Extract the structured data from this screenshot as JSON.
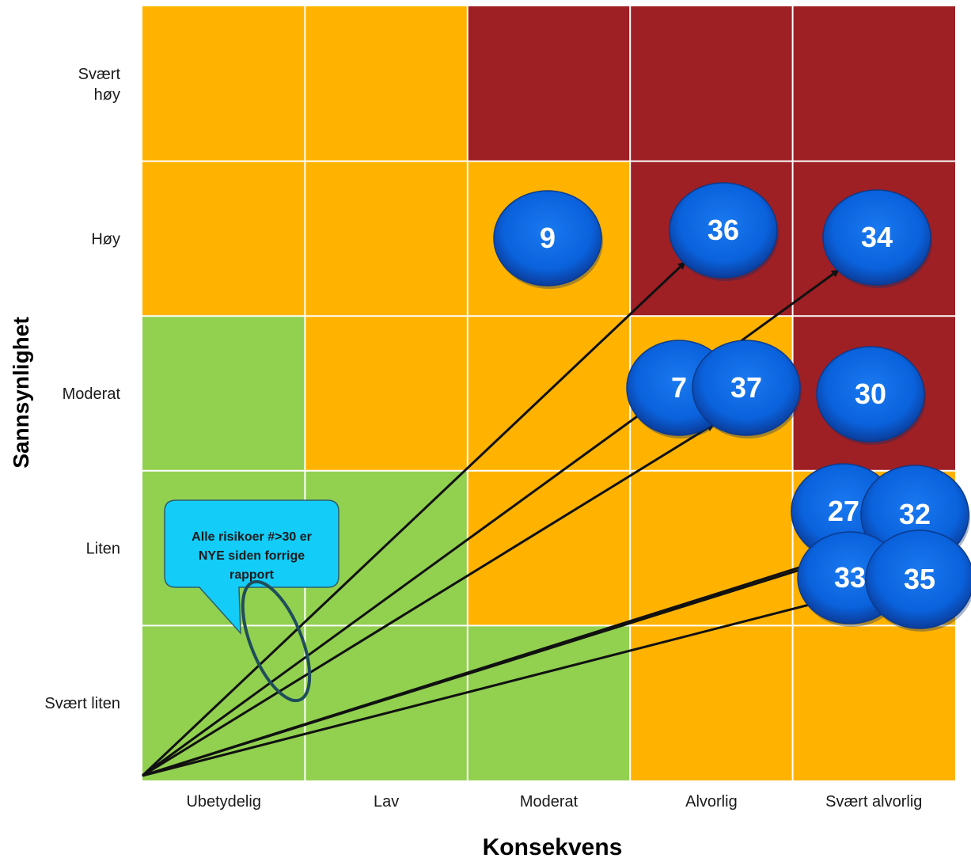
{
  "x_axis": {
    "title": "Konsekvens",
    "labels": [
      "Ubetydelig",
      "Lav",
      "Moderat",
      "Alvorlig",
      "Svært alvorlig"
    ]
  },
  "y_axis": {
    "title": "Sannsynlighet",
    "labels": [
      [
        "Svært",
        "høy"
      ],
      [
        "Høy"
      ],
      [
        "Moderat"
      ],
      [
        "Liten"
      ],
      [
        "Svært liten"
      ]
    ]
  },
  "colors": {
    "green": "#92d050",
    "orange": "#ffb300",
    "red": "#9e1f24",
    "bubble": "#0a66e0",
    "callout": "#13ccf7",
    "ellipse": "#1f4e5a"
  },
  "grid": [
    [
      "orange",
      "orange",
      "red",
      "red",
      "red"
    ],
    [
      "orange",
      "orange",
      "orange",
      "red",
      "red"
    ],
    [
      "green",
      "orange",
      "orange",
      "orange",
      "red"
    ],
    [
      "green",
      "green",
      "orange",
      "orange",
      "orange"
    ],
    [
      "green",
      "green",
      "green",
      "orange",
      "orange"
    ]
  ],
  "risks": [
    {
      "id": "9",
      "consequence": "Moderat",
      "likelihood": "Høy"
    },
    {
      "id": "36",
      "consequence": "Alvorlig",
      "likelihood": "Høy",
      "is_new": true
    },
    {
      "id": "34",
      "consequence": "Svært alvorlig",
      "likelihood": "Høy",
      "is_new": true
    },
    {
      "id": "7",
      "consequence": "Alvorlig",
      "likelihood": "Moderat"
    },
    {
      "id": "37",
      "consequence": "Alvorlig",
      "likelihood": "Moderat",
      "is_new": true
    },
    {
      "id": "30",
      "consequence": "Svært alvorlig",
      "likelihood": "Moderat"
    },
    {
      "id": "27",
      "consequence": "Svært alvorlig",
      "likelihood": "Liten"
    },
    {
      "id": "32",
      "consequence": "Svært alvorlig",
      "likelihood": "Liten",
      "is_new": true
    },
    {
      "id": "33",
      "consequence": "Svært alvorlig",
      "likelihood": "Liten",
      "is_new": true
    },
    {
      "id": "35",
      "consequence": "Svært alvorlig",
      "likelihood": "Liten",
      "is_new": true
    }
  ],
  "callout": {
    "lines": [
      "Alle risikoer #>30 er",
      "NYE siden forrige",
      "rapport"
    ]
  }
}
